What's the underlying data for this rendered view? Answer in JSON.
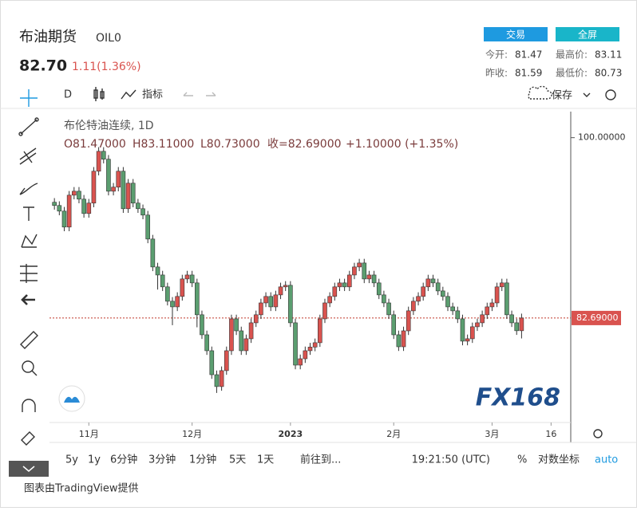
{
  "header": {
    "title": "布油期货",
    "symbol": "OIL0",
    "price": "82.70",
    "change": "1.11(1.36%)",
    "buttons": [
      "交易",
      "全屏"
    ],
    "stats": [
      {
        "label": "今开:",
        "value": "81.47"
      },
      {
        "label": "最高价:",
        "value": "83.11"
      },
      {
        "label": "昨收:",
        "value": "81.59"
      },
      {
        "label": "最低价:",
        "value": "80.73"
      }
    ]
  },
  "toolbar": {
    "interval": "D",
    "indicators": "指标",
    "save": "保存"
  },
  "legend": {
    "name": "布伦特油连续, 1D",
    "open": "O81.47000",
    "high": "H83.11000",
    "low": "L80.73000",
    "close": "收=82.69000",
    "change": "+1.10000 (+1.35%)"
  },
  "watermark": "FX168",
  "chart_data": {
    "type": "candlestick",
    "up_color": "#d9534f",
    "down_color": "#5b9e70",
    "ylim": [
      72.66,
      102.5
    ],
    "yticks": [
      {
        "value": 100,
        "label": "100.00000"
      }
    ],
    "xlim": [
      -1,
      105
    ],
    "xticks": [
      {
        "value": 7,
        "label": "11月"
      },
      {
        "value": 28,
        "label": "12月"
      },
      {
        "value": 48,
        "label": "2023"
      },
      {
        "value": 69,
        "label": "2月"
      },
      {
        "value": 89,
        "label": "3月"
      },
      {
        "value": 101,
        "label": "16"
      }
    ],
    "last_price": {
      "value": 82.69,
      "label": "82.69000"
    },
    "candles": [
      [
        93.8,
        94.2,
        93.09,
        93.49
      ],
      [
        93.49,
        93.89,
        92.55,
        92.95
      ],
      [
        92.95,
        93.35,
        91.02,
        91.42
      ],
      [
        91.42,
        94.88,
        91.02,
        94.48
      ],
      [
        94.48,
        95.26,
        94.08,
        94.86
      ],
      [
        94.86,
        95.26,
        93.7,
        94.1
      ],
      [
        94.1,
        94.5,
        92.32,
        92.72
      ],
      [
        92.72,
        94.12,
        92.32,
        93.72
      ],
      [
        93.72,
        97.18,
        93.32,
        96.78
      ],
      [
        96.78,
        99.09,
        96.38,
        98.69
      ],
      [
        98.69,
        99.09,
        97.53,
        97.93
      ],
      [
        97.93,
        98.33,
        94.46,
        94.86
      ],
      [
        94.86,
        95.65,
        94.46,
        95.25
      ],
      [
        95.25,
        97.18,
        94.85,
        96.78
      ],
      [
        96.78,
        97.18,
        92.78,
        93.18
      ],
      [
        93.18,
        96.03,
        92.78,
        95.63
      ],
      [
        95.63,
        96.03,
        93.32,
        93.72
      ],
      [
        93.72,
        94.12,
        92.78,
        93.18
      ],
      [
        93.18,
        93.58,
        92.17,
        92.57
      ],
      [
        92.57,
        92.97,
        89.87,
        90.27
      ],
      [
        90.27,
        90.67,
        87.19,
        87.59
      ],
      [
        87.59,
        87.99,
        85.42,
        86.82
      ],
      [
        86.82,
        87.22,
        85.28,
        85.68
      ],
      [
        85.68,
        86.08,
        83.9,
        84.3
      ],
      [
        84.3,
        84.7,
        82.0,
        83.76
      ],
      [
        83.76,
        85.16,
        83.36,
        84.76
      ],
      [
        84.76,
        86.84,
        84.36,
        86.44
      ],
      [
        86.44,
        87.22,
        86.04,
        86.82
      ],
      [
        86.82,
        87.22,
        85.66,
        86.06
      ],
      [
        86.06,
        86.46,
        81.8,
        83.0
      ],
      [
        83.0,
        83.4,
        80.68,
        81.08
      ],
      [
        81.08,
        81.48,
        79.15,
        79.55
      ],
      [
        79.55,
        79.95,
        76.85,
        77.25
      ],
      [
        77.25,
        77.65,
        75.5,
        76.11
      ],
      [
        76.11,
        78.04,
        75.71,
        77.64
      ],
      [
        77.64,
        79.95,
        77.24,
        79.55
      ],
      [
        79.55,
        83.01,
        79.15,
        82.61
      ],
      [
        82.61,
        83.01,
        81.06,
        81.46
      ],
      [
        81.46,
        81.86,
        79.15,
        79.55
      ],
      [
        79.55,
        81.1,
        79.15,
        80.7
      ],
      [
        80.7,
        82.63,
        80.3,
        82.23
      ],
      [
        82.23,
        83.4,
        81.83,
        83.0
      ],
      [
        83.0,
        84.54,
        82.6,
        84.14
      ],
      [
        84.14,
        85.16,
        83.74,
        84.76
      ],
      [
        84.76,
        85.16,
        83.36,
        83.76
      ],
      [
        83.76,
        85.31,
        83.36,
        84.91
      ],
      [
        84.91,
        86.08,
        84.51,
        85.68
      ],
      [
        85.68,
        86.23,
        85.28,
        85.83
      ],
      [
        85.83,
        86.23,
        81.83,
        82.23
      ],
      [
        82.23,
        82.63,
        77.77,
        78.17
      ],
      [
        78.17,
        79.18,
        77.77,
        78.78
      ],
      [
        78.78,
        79.95,
        78.38,
        79.55
      ],
      [
        79.55,
        80.3,
        79.15,
        79.9
      ],
      [
        79.9,
        80.72,
        79.5,
        80.32
      ],
      [
        80.32,
        83.01,
        79.92,
        82.61
      ],
      [
        82.61,
        84.54,
        82.21,
        84.14
      ],
      [
        84.14,
        85.16,
        83.74,
        84.76
      ],
      [
        84.76,
        86.08,
        84.36,
        85.68
      ],
      [
        85.68,
        86.46,
        85.28,
        86.06
      ],
      [
        86.06,
        86.46,
        85.28,
        85.68
      ],
      [
        85.68,
        87.22,
        85.28,
        86.82
      ],
      [
        86.82,
        87.99,
        86.42,
        87.59
      ],
      [
        87.59,
        88.37,
        87.19,
        87.97
      ],
      [
        87.97,
        88.37,
        86.04,
        86.44
      ],
      [
        86.44,
        87.22,
        86.04,
        86.82
      ],
      [
        86.82,
        87.22,
        85.66,
        86.06
      ],
      [
        86.06,
        86.46,
        84.51,
        84.91
      ],
      [
        84.91,
        85.31,
        83.74,
        84.14
      ],
      [
        84.14,
        84.54,
        82.6,
        83.0
      ],
      [
        83.0,
        83.4,
        80.68,
        81.08
      ],
      [
        81.08,
        81.48,
        79.53,
        79.93
      ],
      [
        79.93,
        81.86,
        79.53,
        81.46
      ],
      [
        81.46,
        83.78,
        81.06,
        83.38
      ],
      [
        83.38,
        84.7,
        82.98,
        84.3
      ],
      [
        84.3,
        85.16,
        83.9,
        84.76
      ],
      [
        84.76,
        86.08,
        84.36,
        85.68
      ],
      [
        85.68,
        86.84,
        85.28,
        86.44
      ],
      [
        86.44,
        86.84,
        85.66,
        86.06
      ],
      [
        86.06,
        86.46,
        84.89,
        85.29
      ],
      [
        85.29,
        85.69,
        84.36,
        84.76
      ],
      [
        84.76,
        85.16,
        83.36,
        83.76
      ],
      [
        83.76,
        84.16,
        82.98,
        83.38
      ],
      [
        83.38,
        83.78,
        82.21,
        82.61
      ],
      [
        82.61,
        83.01,
        80.07,
        80.47
      ],
      [
        80.47,
        81.1,
        80.07,
        80.7
      ],
      [
        80.7,
        82.25,
        80.3,
        81.85
      ],
      [
        81.85,
        82.63,
        81.45,
        82.23
      ],
      [
        82.23,
        83.4,
        81.83,
        83.0
      ],
      [
        83.0,
        84.16,
        82.6,
        83.76
      ],
      [
        83.76,
        84.54,
        83.36,
        84.14
      ],
      [
        84.14,
        86.08,
        83.74,
        85.68
      ],
      [
        85.68,
        86.46,
        85.28,
        86.06
      ],
      [
        86.06,
        86.46,
        82.6,
        83.0
      ],
      [
        83.0,
        83.4,
        81.83,
        82.23
      ],
      [
        82.23,
        82.63,
        81.07,
        81.47
      ],
      [
        81.47,
        83.11,
        80.73,
        82.69
      ]
    ]
  },
  "bottom_bar": {
    "ranges": [
      "5y",
      "1y",
      "6分钟",
      "3分钟",
      "1分钟",
      "5天",
      "1天"
    ],
    "goto": "前往到...",
    "time": "19:21:50 (UTC)",
    "percent": "%",
    "log": "对数坐标",
    "auto": "auto"
  },
  "footer": "图表由TradingView提供"
}
